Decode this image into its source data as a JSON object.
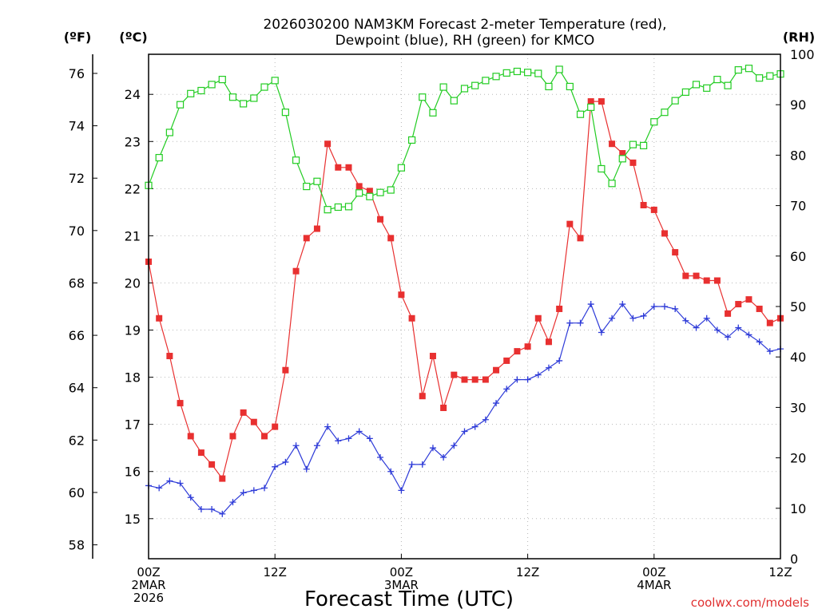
{
  "chart_data": {
    "type": "line",
    "title_line1": "2026030200 NAM3KM Forecast 2-meter Temperature (red),",
    "title_line2": "Dewpoint (blue), RH (green) for KMCO",
    "units": {
      "fahrenheit": "(ºF)",
      "celsius": "(ºC)",
      "rh": "(RH)"
    },
    "xlabel": "Forecast Time (UTC)",
    "credit": "coolwx.com/models",
    "x_hours_range": [
      0,
      60
    ],
    "x_ticks": [
      {
        "hour": 0,
        "line1": "00Z",
        "line2": "2MAR",
        "line3": "2026"
      },
      {
        "hour": 12,
        "line1": "12Z",
        "line2": "",
        "line3": ""
      },
      {
        "hour": 24,
        "line1": "00Z",
        "line2": "3MAR",
        "line3": ""
      },
      {
        "hour": 36,
        "line1": "12Z",
        "line2": "",
        "line3": ""
      },
      {
        "hour": 48,
        "line1": "00Z",
        "line2": "4MAR",
        "line3": ""
      },
      {
        "hour": 60,
        "line1": "12Z",
        "line2": "",
        "line3": ""
      }
    ],
    "celsius_axis": {
      "ylim": [
        14.15,
        24.85
      ],
      "ticks": [
        "15",
        "16",
        "17",
        "18",
        "19",
        "20",
        "21",
        "22",
        "23",
        "24"
      ]
    },
    "fahrenheit_ticks": [
      "58",
      "60",
      "62",
      "64",
      "66",
      "68",
      "70",
      "72",
      "74",
      "76"
    ],
    "rh_axis": {
      "ylim": [
        0,
        100
      ],
      "ticks": [
        "0",
        "10",
        "20",
        "30",
        "40",
        "50",
        "60",
        "70",
        "80",
        "90",
        "100"
      ]
    },
    "series": [
      {
        "name": "2-meter Temperature",
        "color": "#e83030",
        "axis": "celsius",
        "marker": "filled-square",
        "values": [
          20.45,
          19.25,
          18.45,
          17.45,
          16.75,
          16.4,
          16.15,
          15.85,
          16.75,
          17.25,
          17.05,
          16.75,
          16.95,
          18.15,
          20.25,
          20.95,
          21.15,
          22.95,
          22.45,
          22.45,
          22.05,
          21.95,
          21.35,
          20.95,
          19.75,
          19.25,
          17.6,
          18.45,
          17.35,
          18.05,
          17.95,
          17.95,
          17.95,
          18.15,
          18.35,
          18.55,
          18.65,
          19.25,
          18.75,
          19.45,
          21.25,
          20.95,
          23.85,
          23.85,
          22.95,
          22.75,
          22.55,
          21.65,
          21.55,
          21.05,
          20.65,
          20.15,
          20.15,
          20.05,
          20.05,
          19.35,
          19.55,
          19.65,
          19.45,
          19.15,
          19.25
        ]
      },
      {
        "name": "Dewpoint",
        "color": "#2e3bd8",
        "axis": "celsius",
        "marker": "plus",
        "values": [
          15.7,
          15.65,
          15.8,
          15.75,
          15.45,
          15.2,
          15.2,
          15.1,
          15.35,
          15.55,
          15.6,
          15.65,
          16.1,
          16.2,
          16.55,
          16.05,
          16.55,
          16.95,
          16.65,
          16.7,
          16.85,
          16.7,
          16.3,
          16.0,
          15.6,
          16.15,
          16.15,
          16.5,
          16.3,
          16.55,
          16.85,
          16.95,
          17.1,
          17.45,
          17.75,
          17.95,
          17.95,
          18.05,
          18.2,
          18.35,
          19.15,
          19.15,
          19.55,
          18.95,
          19.25,
          19.55,
          19.25,
          19.3,
          19.5,
          19.5,
          19.45,
          19.2,
          19.05,
          19.25,
          19.0,
          18.85,
          19.05,
          18.9,
          18.75,
          18.55,
          18.6
        ]
      },
      {
        "name": "RH",
        "color": "#22cc22",
        "axis": "rh",
        "marker": "open-square",
        "values": [
          74,
          79.5,
          84.5,
          90,
          92.2,
          92.8,
          94,
          95,
          91.5,
          90.2,
          91.3,
          93.5,
          94.8,
          88.5,
          79,
          73.8,
          74.8,
          69.2,
          69.7,
          69.8,
          72.5,
          71.8,
          72.6,
          73.1,
          77.5,
          83,
          91.5,
          88.4,
          93.5,
          90.8,
          93.2,
          93.8,
          94.8,
          95.6,
          96.3,
          96.6,
          96.4,
          96.2,
          93.6,
          97,
          93.6,
          88.1,
          89.5,
          77.3,
          74.4,
          79.3,
          82.1,
          81.9,
          86.6,
          88.5,
          90.8,
          92.5,
          94,
          93.3,
          95,
          93.8,
          96.9,
          97.2,
          95.3,
          95.7,
          96.1
        ]
      }
    ]
  }
}
